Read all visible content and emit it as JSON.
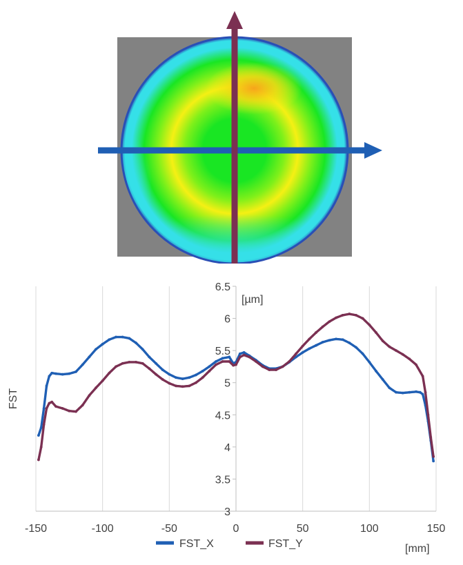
{
  "chart_data": {
    "type": "scatter",
    "ylabel": "FST",
    "y_unit": "[µm]",
    "x_unit": "[mm]",
    "xlim": [
      -150,
      150
    ],
    "ylim": [
      3,
      6.5
    ],
    "x_ticks": [
      -150,
      -100,
      -50,
      0,
      50,
      100,
      150
    ],
    "y_ticks": [
      3,
      3.5,
      4,
      4.5,
      5,
      5.5,
      6,
      6.5
    ],
    "y_axis_position": "x=0",
    "grid": "vertical",
    "legend_position": "bottom",
    "series": [
      {
        "name": "FST_X",
        "color": "#1f5fb4",
        "points": [
          [
            -148,
            4.18
          ],
          [
            -146,
            4.3
          ],
          [
            -144,
            4.6
          ],
          [
            -142,
            4.95
          ],
          [
            -140,
            5.1
          ],
          [
            -138,
            5.15
          ],
          [
            -135,
            5.14
          ],
          [
            -130,
            5.13
          ],
          [
            -125,
            5.14
          ],
          [
            -120,
            5.17
          ],
          [
            -115,
            5.28
          ],
          [
            -110,
            5.4
          ],
          [
            -105,
            5.52
          ],
          [
            -100,
            5.6
          ],
          [
            -95,
            5.67
          ],
          [
            -90,
            5.71
          ],
          [
            -85,
            5.71
          ],
          [
            -80,
            5.69
          ],
          [
            -75,
            5.62
          ],
          [
            -70,
            5.52
          ],
          [
            -65,
            5.4
          ],
          [
            -60,
            5.3
          ],
          [
            -55,
            5.2
          ],
          [
            -50,
            5.13
          ],
          [
            -45,
            5.08
          ],
          [
            -40,
            5.06
          ],
          [
            -35,
            5.08
          ],
          [
            -30,
            5.12
          ],
          [
            -25,
            5.18
          ],
          [
            -20,
            5.25
          ],
          [
            -15,
            5.33
          ],
          [
            -10,
            5.38
          ],
          [
            -5,
            5.4
          ],
          [
            -2,
            5.3
          ],
          [
            0,
            5.32
          ],
          [
            3,
            5.45
          ],
          [
            6,
            5.47
          ],
          [
            10,
            5.42
          ],
          [
            15,
            5.35
          ],
          [
            20,
            5.27
          ],
          [
            25,
            5.22
          ],
          [
            30,
            5.22
          ],
          [
            35,
            5.25
          ],
          [
            40,
            5.32
          ],
          [
            45,
            5.4
          ],
          [
            50,
            5.47
          ],
          [
            55,
            5.53
          ],
          [
            60,
            5.58
          ],
          [
            65,
            5.63
          ],
          [
            70,
            5.66
          ],
          [
            75,
            5.68
          ],
          [
            80,
            5.67
          ],
          [
            85,
            5.62
          ],
          [
            90,
            5.55
          ],
          [
            95,
            5.45
          ],
          [
            100,
            5.32
          ],
          [
            105,
            5.18
          ],
          [
            110,
            5.05
          ],
          [
            115,
            4.92
          ],
          [
            120,
            4.85
          ],
          [
            125,
            4.84
          ],
          [
            130,
            4.85
          ],
          [
            135,
            4.86
          ],
          [
            138,
            4.85
          ],
          [
            140,
            4.82
          ],
          [
            142,
            4.65
          ],
          [
            144,
            4.4
          ],
          [
            146,
            4.1
          ],
          [
            148,
            3.78
          ]
        ]
      },
      {
        "name": "FST_Y",
        "color": "#7b3052",
        "points": [
          [
            -148,
            3.8
          ],
          [
            -146,
            4.0
          ],
          [
            -144,
            4.35
          ],
          [
            -142,
            4.6
          ],
          [
            -140,
            4.68
          ],
          [
            -138,
            4.7
          ],
          [
            -135,
            4.63
          ],
          [
            -130,
            4.6
          ],
          [
            -125,
            4.56
          ],
          [
            -120,
            4.55
          ],
          [
            -115,
            4.65
          ],
          [
            -110,
            4.8
          ],
          [
            -105,
            4.92
          ],
          [
            -100,
            5.03
          ],
          [
            -95,
            5.15
          ],
          [
            -90,
            5.25
          ],
          [
            -85,
            5.3
          ],
          [
            -80,
            5.32
          ],
          [
            -75,
            5.32
          ],
          [
            -70,
            5.3
          ],
          [
            -65,
            5.22
          ],
          [
            -60,
            5.13
          ],
          [
            -55,
            5.05
          ],
          [
            -50,
            4.99
          ],
          [
            -45,
            4.95
          ],
          [
            -40,
            4.94
          ],
          [
            -35,
            4.95
          ],
          [
            -30,
            5.0
          ],
          [
            -25,
            5.08
          ],
          [
            -20,
            5.18
          ],
          [
            -15,
            5.28
          ],
          [
            -10,
            5.33
          ],
          [
            -5,
            5.33
          ],
          [
            -2,
            5.27
          ],
          [
            0,
            5.28
          ],
          [
            3,
            5.4
          ],
          [
            6,
            5.43
          ],
          [
            10,
            5.4
          ],
          [
            15,
            5.33
          ],
          [
            20,
            5.25
          ],
          [
            25,
            5.2
          ],
          [
            30,
            5.2
          ],
          [
            35,
            5.25
          ],
          [
            40,
            5.33
          ],
          [
            45,
            5.45
          ],
          [
            50,
            5.57
          ],
          [
            55,
            5.68
          ],
          [
            60,
            5.78
          ],
          [
            65,
            5.87
          ],
          [
            70,
            5.95
          ],
          [
            75,
            6.01
          ],
          [
            80,
            6.05
          ],
          [
            85,
            6.07
          ],
          [
            90,
            6.05
          ],
          [
            95,
            6.0
          ],
          [
            100,
            5.9
          ],
          [
            105,
            5.78
          ],
          [
            110,
            5.65
          ],
          [
            115,
            5.56
          ],
          [
            120,
            5.5
          ],
          [
            125,
            5.44
          ],
          [
            130,
            5.37
          ],
          [
            135,
            5.28
          ],
          [
            140,
            5.1
          ],
          [
            142,
            4.85
          ],
          [
            144,
            4.5
          ],
          [
            146,
            4.15
          ],
          [
            148,
            3.85
          ]
        ]
      }
    ]
  },
  "heatmap": {
    "colors": {
      "background": "#828282",
      "rim": "#2a4fb5",
      "cyan": "#35e0e8",
      "green": "#19e623",
      "yellow": "#f5f014",
      "orange": "#f7a01c"
    },
    "arrow_x_color": "#1f5fb4",
    "arrow_y_color": "#7b3052"
  }
}
